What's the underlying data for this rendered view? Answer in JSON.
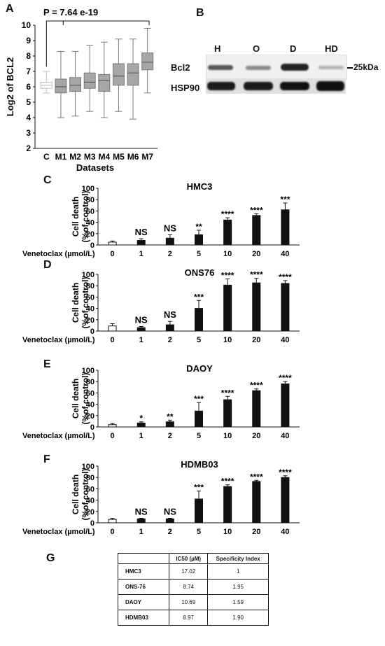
{
  "panels": {
    "a": "A",
    "b": "B",
    "c": "C",
    "d": "D",
    "e": "E",
    "f": "F",
    "g": "G"
  },
  "boxplot": {
    "pvalue": "P = 7.64 e-19",
    "ylabel": "Log2 of BCL2",
    "xlabel": "Datasets",
    "yticks": [
      "2",
      "3",
      "4",
      "5",
      "6",
      "7",
      "8",
      "9",
      "10"
    ],
    "categories": [
      "C",
      "M1",
      "M2",
      "M3",
      "M4",
      "M5",
      "M6",
      "M7"
    ]
  },
  "western": {
    "lanes": [
      "H",
      "O",
      "D",
      "HD"
    ],
    "rows": [
      "Bcl2",
      "HSP90"
    ],
    "marker": "25kDa"
  },
  "bars_common": {
    "ylabel1": "Cell death",
    "ylabel2": "(%of control)",
    "xaxis_label": "Venetoclax (µmol/L)",
    "doses": [
      "0",
      "1",
      "2",
      "5",
      "10",
      "20",
      "40"
    ],
    "yticks": [
      "0",
      "20",
      "40",
      "60",
      "80",
      "100"
    ]
  },
  "table": {
    "headers": [
      "",
      "IC50 (µM)",
      "Specificity Index"
    ],
    "rows": [
      [
        "HMC3",
        "17.02",
        "1"
      ],
      [
        "ONS-76",
        "8.74",
        "1.95"
      ],
      [
        "DAOY",
        "10.69",
        "1.59"
      ],
      [
        "HDMB03",
        "8.97",
        "1.90"
      ]
    ]
  },
  "chart_data": [
    {
      "type": "box",
      "title": "",
      "xlabel": "Datasets",
      "ylabel": "Log2 of BCL2",
      "ylim": [
        2,
        10
      ],
      "annotation": "P = 7.64 e-19",
      "categories": [
        "C",
        "M1",
        "M2",
        "M3",
        "M4",
        "M5",
        "M6",
        "M7"
      ],
      "boxes": [
        {
          "min": 5.6,
          "q1": 5.9,
          "median": 6.1,
          "q3": 6.3,
          "max": 7.0
        },
        {
          "min": 4.0,
          "q1": 5.6,
          "median": 6.0,
          "q3": 6.5,
          "max": 8.3
        },
        {
          "min": 4.1,
          "q1": 5.7,
          "median": 6.1,
          "q3": 6.6,
          "max": 8.3
        },
        {
          "min": 4.4,
          "q1": 5.9,
          "median": 6.3,
          "q3": 6.9,
          "max": 8.7
        },
        {
          "min": 4.0,
          "q1": 5.7,
          "median": 6.4,
          "q3": 6.8,
          "max": 8.9
        },
        {
          "min": 4.4,
          "q1": 6.1,
          "median": 6.7,
          "q3": 7.5,
          "max": 9.1
        },
        {
          "min": 3.9,
          "q1": 6.1,
          "median": 6.9,
          "q3": 7.5,
          "max": 9.1
        },
        {
          "min": 5.6,
          "q1": 7.1,
          "median": 7.6,
          "q3": 8.2,
          "max": 9.8
        }
      ]
    },
    {
      "type": "bar",
      "title": "HMC3",
      "xlabel": "Venetoclax (µmol/L)",
      "ylabel": "Cell death (%of control)",
      "ylim": [
        0,
        100
      ],
      "categories": [
        "0",
        "1",
        "2",
        "5",
        "10",
        "20",
        "40"
      ],
      "values": [
        5,
        8,
        12,
        18,
        44,
        52,
        62
      ],
      "errors": [
        2,
        3,
        6,
        8,
        4,
        3,
        12
      ],
      "significance": [
        "",
        "NS",
        "NS",
        "**",
        "****",
        "****",
        "***"
      ]
    },
    {
      "type": "bar",
      "title": "ONS76",
      "xlabel": "Venetoclax (µmol/L)",
      "ylabel": "Cell death (%of control)",
      "ylim": [
        0,
        100
      ],
      "categories": [
        "0",
        "1",
        "2",
        "5",
        "10",
        "20",
        "40"
      ],
      "values": [
        9,
        6,
        11,
        40,
        81,
        85,
        84
      ],
      "errors": [
        4,
        2,
        6,
        14,
        11,
        8,
        5
      ],
      "significance": [
        "",
        "NS",
        "NS",
        "***",
        "****",
        "****",
        "****"
      ]
    },
    {
      "type": "bar",
      "title": "DAOY",
      "xlabel": "Venetoclax (µmol/L)",
      "ylabel": "Cell death (%of control)",
      "ylim": [
        0,
        100
      ],
      "categories": [
        "0",
        "1",
        "2",
        "5",
        "10",
        "20",
        "40"
      ],
      "values": [
        4,
        7,
        9,
        28,
        48,
        64,
        76
      ],
      "errors": [
        2,
        2,
        3,
        15,
        6,
        3,
        4
      ],
      "significance": [
        "",
        "*",
        "**",
        "***",
        "****",
        "****",
        "****"
      ]
    },
    {
      "type": "bar",
      "title": "HDMB03",
      "xlabel": "Venetoclax (µmol/L)",
      "ylabel": "Cell death (%of control)",
      "ylim": [
        0,
        100
      ],
      "categories": [
        "0",
        "1",
        "2",
        "5",
        "10",
        "20",
        "40"
      ],
      "values": [
        6,
        7,
        7,
        42,
        64,
        73,
        80
      ],
      "errors": [
        2,
        1,
        1,
        14,
        3,
        2,
        3
      ],
      "significance": [
        "",
        "NS",
        "NS",
        "***",
        "****",
        "****",
        "****"
      ]
    }
  ]
}
